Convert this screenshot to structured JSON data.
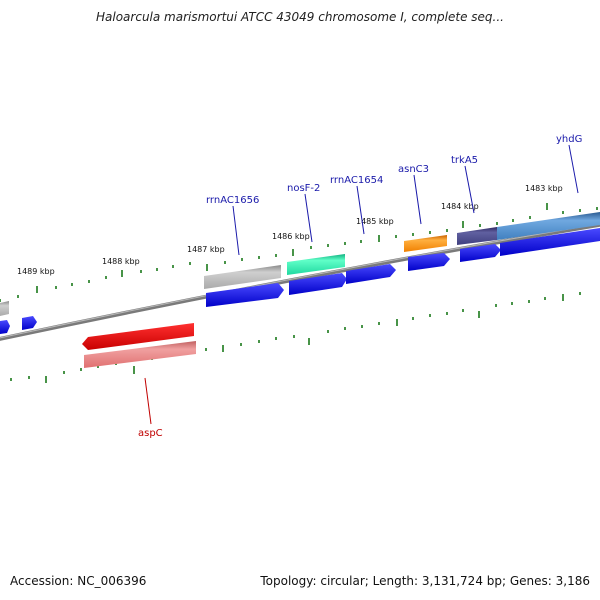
{
  "map": {
    "title": "Haloarcula marismortui ATCC 43049 chromosome I, complete seq...",
    "accession": "Accession: NC_006396",
    "info": "Topology: circular; Length: 3,131,724 bp; Genes: 3,186"
  },
  "tick_labels": [
    "1489 kbp",
    "1488 kbp",
    "1487 kbp",
    "1486 kbp",
    "1485 kbp",
    "1484 kbp",
    "1483 kbp"
  ],
  "gene_labels": [
    {
      "text": "rrnAC1656",
      "color": "#1a1aaa"
    },
    {
      "text": "nosF-2",
      "color": "#1a1aaa"
    },
    {
      "text": "rrnAC1654",
      "color": "#1a1aaa"
    },
    {
      "text": "asnC3",
      "color": "#1a1aaa"
    },
    {
      "text": "trkA5",
      "color": "#1a1aaa"
    },
    {
      "text": "yhdG",
      "color": "#1a1aaa"
    },
    {
      "text": "aspC",
      "color": "#c00000"
    }
  ],
  "colors": {
    "backbone": "#808080",
    "tick": "#1a7a1a",
    "cds": "#0000e0",
    "aspc": "#e00000",
    "aspc_light": "#e88080",
    "gray_feature": "#a0a0a0",
    "nosf_feature": "#20d8a0",
    "asnc_feature": "#f08000",
    "trka_feature": "#404080",
    "yhdg_feature": "#4080c0"
  }
}
